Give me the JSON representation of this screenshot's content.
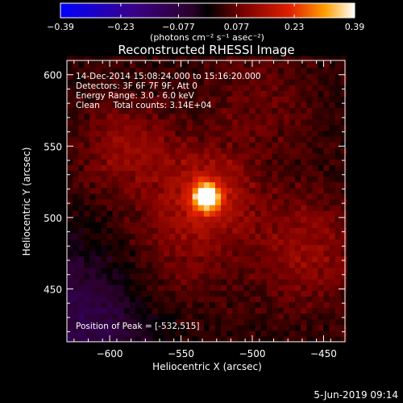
{
  "chart_data": {
    "type": "heatmap",
    "title": "Reconstructed RHESSI Image",
    "xlabel": "Heliocentric X (arcsec)",
    "ylabel": "Heliocentric Y (arcsec)",
    "xlim": [
      -630,
      -435
    ],
    "ylim": [
      413,
      610
    ],
    "x_ticks": [
      -600,
      -550,
      -500,
      -450
    ],
    "x_tick_labels": [
      "−600",
      "−550",
      "−500",
      "−450"
    ],
    "y_ticks": [
      450,
      500,
      550,
      600
    ],
    "y_tick_labels": [
      "450",
      "500",
      "550",
      "600"
    ],
    "colorbar": {
      "range": [
        -0.39,
        0.39
      ],
      "ticks": [
        -0.39,
        -0.23,
        -0.077,
        0.077,
        0.23,
        0.39
      ],
      "tick_labels": [
        "−0.39",
        "−0.23",
        "−0.077",
        "0.077",
        "0.23",
        "0.39"
      ],
      "unit_text": "(photons cm⁻² s⁻¹ asec⁻²)"
    },
    "annotations": [
      "14-Dec-2014 15:08:24.000 to 15:16:20.000",
      "Detectors: 3F 6F 7F 9F, Att 0",
      "Energy Range: 3.0 - 6.0 keV",
      "Clean     Total counts: 3.14E+04"
    ],
    "peak_text": "Position of Peak = [-532,515]",
    "peak": [
      -532,
      515
    ],
    "sources": [
      {
        "x": -532,
        "y": 515,
        "sigma": 6,
        "amp": 0.39
      },
      {
        "x": -532,
        "y": 515,
        "sigma": 22,
        "amp": 0.14
      },
      {
        "x": -587,
        "y": 547,
        "sigma": 24,
        "amp": 0.09
      },
      {
        "x": -462,
        "y": 478,
        "sigma": 28,
        "amp": 0.09
      },
      {
        "x": -560,
        "y": 468,
        "sigma": 30,
        "amp": 0.07
      },
      {
        "x": -495,
        "y": 580,
        "sigma": 28,
        "amp": 0.05
      }
    ],
    "background_level": 0.03,
    "negative_region": {
      "x": -615,
      "y": 428,
      "sigma": 40,
      "amp": -0.12
    }
  },
  "footer": {
    "timestamp": "5-Jun-2019 09:14"
  }
}
